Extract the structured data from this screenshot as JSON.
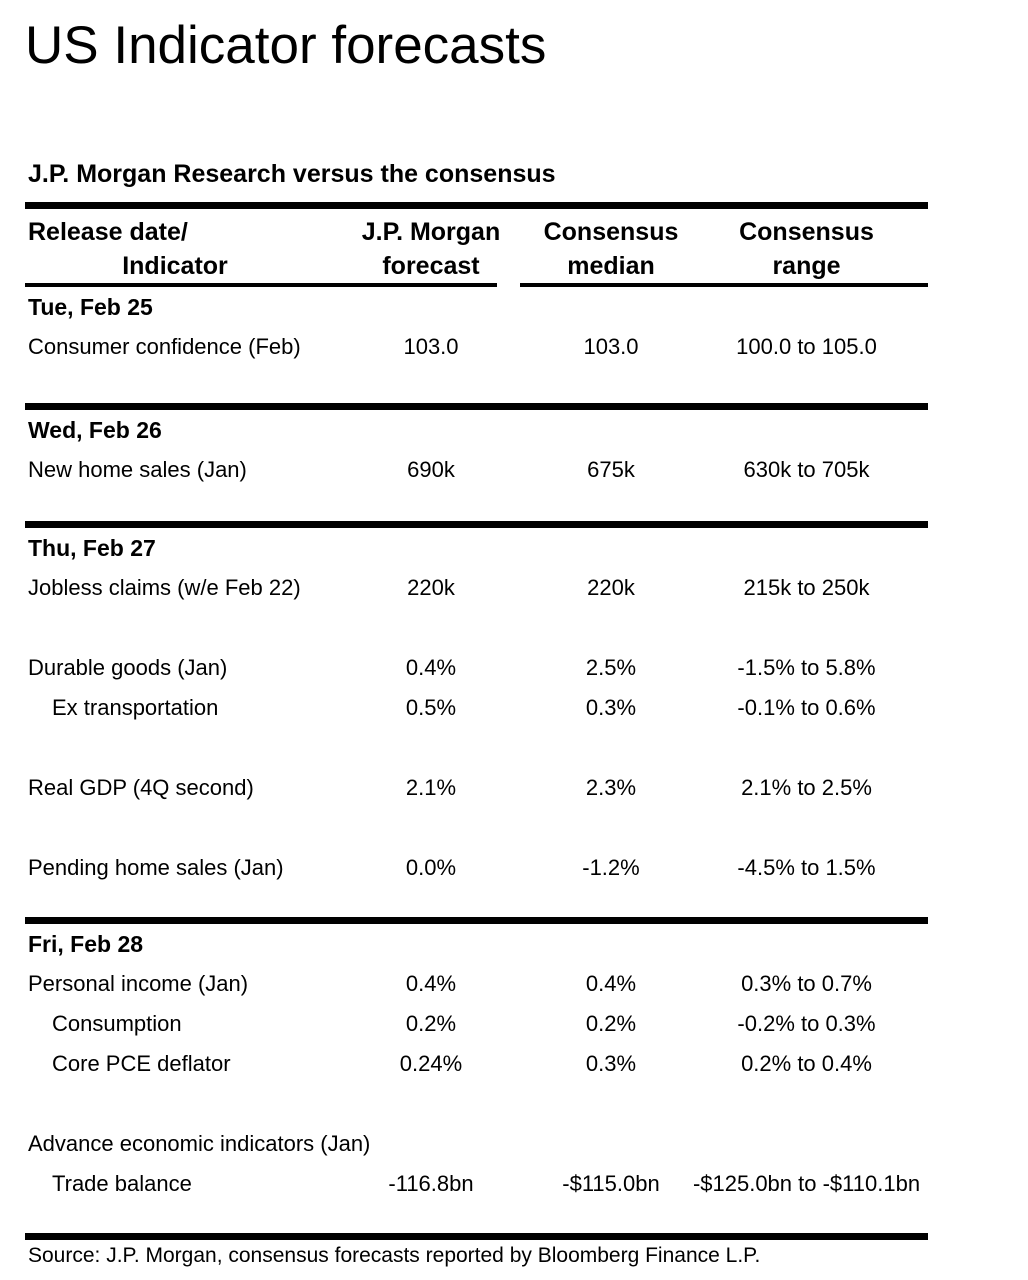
{
  "title": "US Indicator forecasts",
  "subtitle": "J.P. Morgan Research versus the consensus",
  "source": "Source: J.P. Morgan, consensus forecasts reported by Bloomberg Finance L.P.",
  "colors": {
    "text": "#000000",
    "background": "#ffffff",
    "rule": "#000000"
  },
  "table": {
    "headers": {
      "col1_line1": "Release date/",
      "col1_line2": "Indicator",
      "col2_line1": "J.P. Morgan",
      "col2_line2": "forecast",
      "col3_line1": "Consensus",
      "col3_line2": "median",
      "col4_line1": "Consensus",
      "col4_line2": "range"
    },
    "sections": [
      {
        "date": "Tue, Feb 25",
        "rows": [
          {
            "indicator": "Consumer confidence (Feb)",
            "jpm": "103.0",
            "median": "103.0",
            "range": "100.0 to 105.0"
          }
        ]
      },
      {
        "date": "Wed, Feb 26",
        "rows": [
          {
            "indicator": "New home sales (Jan)",
            "jpm": "690k",
            "median": "675k",
            "range": "630k to 705k"
          }
        ]
      },
      {
        "date": "Thu, Feb 27",
        "rows": [
          {
            "indicator": "Jobless claims (w/e Feb 22)",
            "jpm": "220k",
            "median": "220k",
            "range": "215k to 250k"
          },
          {
            "indicator": "Durable goods (Jan)",
            "jpm": "0.4%",
            "median": "2.5%",
            "range": "-1.5% to 5.8%"
          },
          {
            "indicator": "Ex transportation",
            "jpm": "0.5%",
            "median": "0.3%",
            "range": "-0.1% to 0.6%"
          },
          {
            "indicator": "Real GDP (4Q second)",
            "jpm": "2.1%",
            "median": "2.3%",
            "range": "2.1% to 2.5%"
          },
          {
            "indicator": "Pending home sales (Jan)",
            "jpm": "0.0%",
            "median": "-1.2%",
            "range": "-4.5% to 1.5%"
          }
        ]
      },
      {
        "date": "Fri, Feb 28",
        "rows": [
          {
            "indicator": "Personal income (Jan)",
            "jpm": "0.4%",
            "median": "0.4%",
            "range": "0.3% to 0.7%"
          },
          {
            "indicator": "Consumption",
            "jpm": "0.2%",
            "median": "0.2%",
            "range": "-0.2% to 0.3%"
          },
          {
            "indicator": "Core PCE deflator",
            "jpm": "0.24%",
            "median": "0.3%",
            "range": "0.2% to 0.4%"
          },
          {
            "indicator": "Advance economic indicators (Jan)",
            "jpm": "",
            "median": "",
            "range": ""
          },
          {
            "indicator": "Trade balance",
            "jpm": "-116.8bn",
            "median": "-$115.0bn",
            "range": "-$125.0bn to -$110.1bn"
          }
        ]
      }
    ]
  }
}
